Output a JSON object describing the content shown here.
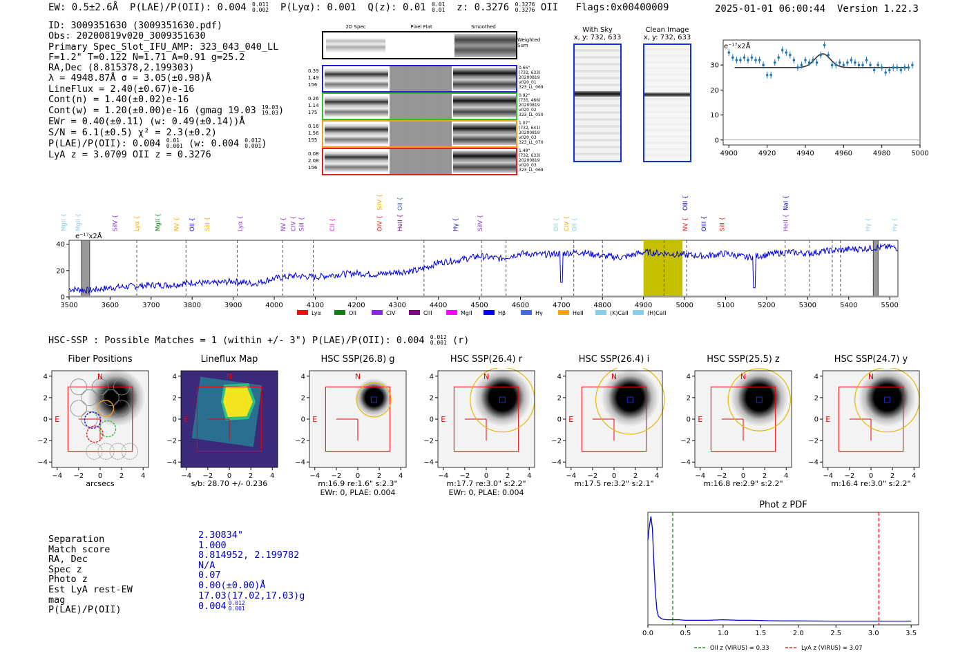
{
  "header": {
    "ew": "EW: 0.5±2.6Å",
    "plae": "P(LAE)/P(OII): 0.004",
    "plae_hi": "0.011",
    "plae_lo": "0.002",
    "plya": "P(Lyα): 0.001",
    "qz": "Q(z): 0.01",
    "qz_hi": "0.01",
    "qz_lo": "0.01",
    "z": "z: 0.3276",
    "z_hi": "0.3276",
    "z_lo": "0.3276",
    "z_tag": "OII",
    "flags": "Flags:0x00400009",
    "datetime": "2025-01-01 06:00:44",
    "version": "Version 1.22.3"
  },
  "info": {
    "id": "ID: 3009351630 (3009351630.pdf)",
    "obs": "Obs: 20200819v020_3009351630",
    "slot": "Primary Spec_Slot_IFU_AMP: 323_043_040_LL",
    "params": "F=1.2\"  T=0.122  N=1.71  A=0.91  g=25.2",
    "radec": "RA,Dec (8.815378,2.199303)",
    "lambda": "λ = 4948.87Å   σ = 3.05(±0.98)Å",
    "lineflux": "LineFlux = 2.40(±0.67)e-16",
    "contn": "Cont(n) = 1.40(±0.02)e-16",
    "contw": "Cont(w) = 1.20(±0.00)e-16 (gmag 19.03",
    "contw_hi": "19.03",
    "contw_lo": "19.03",
    "ewr": "EWr = 0.40(±0.11) (w: 0.49(±0.14))Å",
    "sn": "S/N = 6.1(±0.5)  χ² = 2.3(±0.2)",
    "plae": "P(LAE)/P(OII): 0.004",
    "plae_hi": "0.01",
    "plae_lo": "0.001",
    "plae_w": "(w: 0.004",
    "plae_w_hi": "0.012",
    "plae_w_lo": "0.001",
    "lyaz": "LyA z = 3.0709  OII z = 0.3276"
  },
  "spec_cutouts": {
    "col_headers": [
      "2D Spec",
      "Pixel Flat",
      "Smoothed"
    ],
    "weighted_sum": [
      "Weighted",
      "Sum"
    ],
    "rows": [
      {
        "left": [
          "0.39",
          "1.49",
          "156"
        ],
        "right": [
          "0.66\"",
          "(732, 633)",
          "20200819",
          "v020_01",
          "323_LL_069"
        ],
        "color": "#2020d0"
      },
      {
        "left": [
          "0.26",
          "1.14",
          "175"
        ],
        "right": [
          "0.92\"",
          "(735, 466)",
          "20200819",
          "v020_02",
          "323_LL_050"
        ],
        "color": "#30c030"
      },
      {
        "left": [
          "0.16",
          "1.56",
          "155"
        ],
        "right": [
          "1.07\"",
          "(732, 641)",
          "20200819",
          "v020_03",
          "323_LL_070"
        ],
        "color": "#f0a020"
      },
      {
        "left": [
          "0.08",
          "2.08",
          "156"
        ],
        "right": [
          "1.48\"",
          "(732, 633)",
          "20200819",
          "v020_03",
          "323_LL_069"
        ],
        "color": "#e02020"
      }
    ]
  },
  "sky_panels": {
    "with_sky": "With Sky",
    "with_sky_xy": "x, y: 732, 633",
    "clean": "Clean Image",
    "clean_xy": "x, y: 732, 633"
  },
  "zoom_chart": {
    "unit": "e⁻¹⁷x2Å",
    "x_ticks": [
      "4900",
      "4920",
      "4940",
      "4960",
      "4980",
      "5000"
    ],
    "y_ticks": [
      "0",
      "10",
      "20",
      "30"
    ]
  },
  "full_spectrum": {
    "unit": "e⁻¹⁷x2Å",
    "x_ticks": [
      "3500",
      "3600",
      "3700",
      "3800",
      "3900",
      "4000",
      "4100",
      "4200",
      "4300",
      "4400",
      "4500",
      "4600",
      "4700",
      "4800",
      "4900",
      "5000",
      "5100",
      "5200",
      "5300",
      "5400",
      "5500"
    ],
    "y_ticks": [
      "0",
      "20",
      "40"
    ],
    "legend": [
      {
        "label": "Lyα",
        "color": "#e81010"
      },
      {
        "label": "OII",
        "color": "#108010"
      },
      {
        "label": "CIV",
        "color": "#8a2be2"
      },
      {
        "label": "CIII",
        "color": "#800080"
      },
      {
        "label": "MgII",
        "color": "#ff00ff"
      },
      {
        "label": "Hβ",
        "color": "#0000ff"
      },
      {
        "label": "Hγ",
        "color": "#4169e1"
      },
      {
        "label": "HeII",
        "color": "#ffa500"
      },
      {
        "label": "(K)CaII",
        "color": "#87ceeb"
      },
      {
        "label": "(H)CaII",
        "color": "#87ceeb"
      }
    ],
    "line_labels": [
      {
        "text": "MgII",
        "color": "#87ceeb"
      },
      {
        "text": "MgII",
        "color": "#87ceeb"
      },
      {
        "text": "SiIV",
        "color": "#8a2be2"
      },
      {
        "text": "Lyα",
        "color": "#ffa500"
      },
      {
        "text": "MgII",
        "color": "#108010"
      },
      {
        "text": "NV",
        "color": "#ffa500"
      },
      {
        "text": "OII",
        "color": "#0000ff"
      },
      {
        "text": "SiII",
        "color": "#ffa500"
      },
      {
        "text": "Lyα",
        "color": "#8a2be2"
      },
      {
        "text": "NV",
        "color": "#8a2be2"
      },
      {
        "text": "CIV",
        "color": "#8a2be2"
      },
      {
        "text": "SiII",
        "color": "#8a2be2"
      },
      {
        "text": "CII",
        "color": "#ff00ff"
      },
      {
        "text": "SiIV",
        "color": "#ffa500"
      },
      {
        "text": "OIV",
        "color": "#e81010"
      },
      {
        "text": "OII",
        "color": "#4169e1"
      },
      {
        "text": "HeII",
        "color": "#800080"
      },
      {
        "text": "Hγ",
        "color": "#0000cc"
      },
      {
        "text": "SiIV",
        "color": "#8a2be2"
      },
      {
        "text": "OII",
        "color": "#87ceeb"
      },
      {
        "text": "CIV",
        "color": "#ffa500"
      },
      {
        "text": "OII",
        "color": "#87ceeb"
      },
      {
        "text": "OIII",
        "color": "#0000cc"
      },
      {
        "text": "NV",
        "color": "#e81010"
      },
      {
        "text": "OIII",
        "color": "#0000cc"
      },
      {
        "text": "SiII",
        "color": "#e81010"
      },
      {
        "text": "NaI",
        "color": "#0000cc"
      },
      {
        "text": "HeII",
        "color": "#8a2be2"
      },
      {
        "text": "Hγ",
        "color": "#87ceeb"
      },
      {
        "text": "Hγ",
        "color": "#87ceeb"
      }
    ]
  },
  "hsc": {
    "summary": "HSC-SSP : Possible Matches = 1 (within +/- 3\")  P(LAE)/P(OII): 0.004",
    "summary_hi": "0.012",
    "summary_lo": "0.001",
    "summary_tag": "(r)",
    "axis_ticks": [
      "−4",
      "−2",
      "0",
      "2",
      "4"
    ],
    "y_ticks": [
      "4",
      "2",
      "0",
      "−2",
      "−4"
    ],
    "north": "N",
    "east": "E",
    "panels": [
      {
        "title": "Fiber Positions",
        "cap1": "arcsecs",
        "cap2": ""
      },
      {
        "title": "Lineflux Map",
        "cap1": "s/b: 28.70 +/- 0.236",
        "cap2": ""
      },
      {
        "title": "HSC SSP(26.8) g",
        "cap1": "m:16.9  re:1.6\"  s:2.3\"",
        "cap2": "EWr: 0, PLAE: 0.004"
      },
      {
        "title": "HSC SSP(26.4) r",
        "cap1": "m:17.7  re:3.0\"  s:2.2\"",
        "cap2": "EWr: 0, PLAE: 0.004"
      },
      {
        "title": "HSC SSP(26.4) i",
        "cap1": "m:17.5  re:3.2\"  s:2.1\"",
        "cap2": ""
      },
      {
        "title": "HSC SSP(25.5) z",
        "cap1": "m:16.8  re:2.9\"  s:2.2\"",
        "cap2": ""
      },
      {
        "title": "HSC SSP(24.7) y",
        "cap1": "m:16.4  re:3.0\"  s:2.2\"",
        "cap2": ""
      }
    ]
  },
  "match_table": {
    "labels": [
      "Separation",
      "Match score",
      "RA, Dec",
      "Spec z",
      "Photo z",
      "Est LyA rest-EW",
      "mag",
      "P(LAE)/P(OII)"
    ],
    "values": [
      "2.30834\"",
      "1.000",
      "8.814952, 2.199782",
      "N/A",
      "0.07",
      "0.00(±0.00)Å",
      "17.03(17.02,17.03)g",
      "0.004"
    ],
    "plae_hi": "0.012",
    "plae_lo": "0.001"
  },
  "photz": {
    "title": "Phot z PDF",
    "x_ticks": [
      "0.0",
      "0.5",
      "1.0",
      "1.5",
      "2.0",
      "2.5",
      "3.0",
      "3.5"
    ],
    "legend_oii": "OII z (VIRUS) = 0.33",
    "legend_lya": "LyA z (VIRUS) = 3.07"
  },
  "chart_data": [
    {
      "type": "line",
      "title": "",
      "ylabel": "e⁻¹⁷x2Å",
      "xlim": [
        3500,
        5520
      ],
      "ylim": [
        0,
        43
      ],
      "x": [
        3500,
        3550,
        3600,
        3650,
        3700,
        3750,
        3800,
        3850,
        3900,
        3950,
        4000,
        4050,
        4100,
        4150,
        4200,
        4250,
        4300,
        4350,
        4400,
        4450,
        4500,
        4550,
        4600,
        4650,
        4700,
        4750,
        4800,
        4850,
        4900,
        4950,
        5000,
        5050,
        5100,
        5150,
        5200,
        5250,
        5300,
        5350,
        5400,
        5450,
        5500,
        5520
      ],
      "y": [
        6,
        5,
        7,
        8,
        9,
        9,
        11,
        10,
        12,
        10,
        14,
        16,
        15,
        17,
        18,
        17,
        19,
        20,
        26,
        28,
        31,
        29,
        33,
        32,
        33,
        34,
        31,
        30,
        34,
        33,
        32,
        31,
        33,
        30,
        32,
        34,
        33,
        35,
        36,
        37,
        38,
        37
      ],
      "shaded_band": [
        4900,
        4995
      ],
      "marker": 4950
    },
    {
      "type": "line",
      "title": "",
      "ylabel": "e⁻¹⁷x2Å",
      "xlim": [
        4897,
        5000
      ],
      "ylim": [
        -2,
        40
      ],
      "x": [
        4900,
        4902,
        4904,
        4906,
        4908,
        4910,
        4912,
        4914,
        4916,
        4918,
        4920,
        4922,
        4924,
        4926,
        4928,
        4930,
        4932,
        4934,
        4936,
        4938,
        4940,
        4942,
        4944,
        4946,
        4948,
        4950,
        4952,
        4954,
        4956,
        4958,
        4960,
        4962,
        4964,
        4966,
        4968,
        4970,
        4972,
        4974,
        4976,
        4978,
        4980,
        4982,
        4984,
        4986,
        4988,
        4990,
        4992,
        4994,
        4996
      ],
      "y": [
        35,
        33,
        32,
        32,
        33,
        32,
        33,
        32,
        32,
        30,
        26,
        26,
        31,
        33,
        36,
        35,
        34,
        32,
        29,
        30,
        32,
        31,
        32,
        31,
        34,
        38,
        34,
        30,
        30,
        31,
        30,
        31,
        32,
        31,
        30,
        30,
        32,
        30,
        28,
        30,
        29,
        27,
        28,
        29,
        29,
        28,
        29,
        29,
        30
      ],
      "fit": {
        "continuum": 29,
        "center": 4949,
        "amplitude": 5.5,
        "sigma": 3.05
      },
      "x_ticks": [
        4900,
        4920,
        4940,
        4960,
        4980,
        5000
      ],
      "y_ticks": [
        0,
        10,
        20,
        30
      ]
    },
    {
      "type": "line",
      "title": "Phot z PDF",
      "xlim": [
        0,
        3.6
      ],
      "x": [
        0.0,
        0.02,
        0.04,
        0.06,
        0.08,
        0.1,
        0.12,
        0.14,
        0.16,
        0.18,
        0.2,
        0.25,
        0.3,
        0.4,
        0.5,
        0.6,
        0.8,
        1.0,
        1.2,
        1.4,
        1.6,
        1.8,
        2.0,
        2.5,
        3.0,
        3.5
      ],
      "y": [
        0.7,
        0.82,
        0.9,
        0.8,
        0.5,
        0.25,
        0.1,
        0.05,
        0.04,
        0.03,
        0.025,
        0.02,
        0.02,
        0.02,
        0.015,
        0.015,
        0.015,
        0.02,
        0.015,
        0.015,
        0.012,
        0.01,
        0.01,
        0.008,
        0.008,
        0.008
      ],
      "vlines": [
        {
          "x": 0.33,
          "color": "#008000",
          "label": "OII z (VIRUS) = 0.33"
        },
        {
          "x": 3.07,
          "color": "#e00000",
          "label": "LyA z (VIRUS) = 3.07"
        }
      ]
    }
  ]
}
